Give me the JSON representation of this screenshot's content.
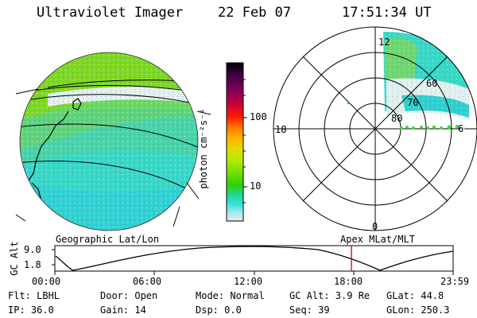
{
  "header": {
    "title": "Ultraviolet Imager",
    "date": "22 Feb 07",
    "time": "17:51:34 UT"
  },
  "left_panel": {
    "caption": "Geographic Lat/Lon"
  },
  "colorbar": {
    "label": "photon cm⁻²s⁻¹",
    "ticks": [
      "100",
      "10"
    ],
    "colors": [
      "#000000",
      "#3b0040",
      "#7a005a",
      "#c8003a",
      "#ff1a00",
      "#ff7a00",
      "#ffb000",
      "#e8d800",
      "#b8ea00",
      "#78e000",
      "#30d000",
      "#20d8a0",
      "#40e0e0",
      "#b0e8f0",
      "#e8e8f0"
    ]
  },
  "right_panel": {
    "caption": "Apex MLat/MLT",
    "mlt_labels": {
      "top": "12",
      "left": "18",
      "right": "6",
      "bottom": "0"
    },
    "lat_labels": [
      "60",
      "70",
      "80"
    ]
  },
  "altitude_plot": {
    "ylabel": "GC Alt",
    "ticks": [
      "9.0",
      "1.8"
    ],
    "time_ticks": [
      "00:00",
      "06:00",
      "12:00",
      "18:00",
      "23:59"
    ],
    "current_time_fraction": 0.7447,
    "marker_color": "#cc0000"
  },
  "info": {
    "flt": "Flt: LBHL",
    "ip": "IP: 36.0",
    "door": "Door: Open",
    "gain": "Gain: 14",
    "mode": "Mode: Normal",
    "dsp": "Dsp:    0.0",
    "gcalt": "GC Alt: 3.9 Re",
    "seq": "Seq: 39",
    "glat": "GLat:  44.8",
    "glon": "GLon: 250.3"
  }
}
